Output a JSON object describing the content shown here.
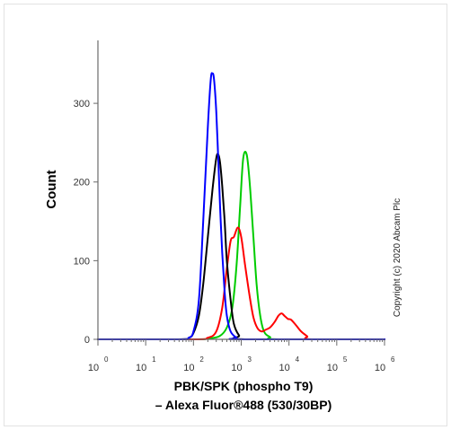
{
  "chart_data": {
    "type": "line",
    "ylabel": "Count",
    "xlabel_line1": "PBK/SPK (phospho T9)",
    "xlabel_line2": "– Alexa Fluor®488 (530/30BP)",
    "x_scale": "log",
    "xlim": [
      1,
      1000000
    ],
    "ylim": [
      0,
      380
    ],
    "grid": false,
    "y_ticks": [
      {
        "value": 0,
        "label": "0"
      },
      {
        "value": 100,
        "label": "100"
      },
      {
        "value": 200,
        "label": "200"
      },
      {
        "value": 300,
        "label": "300"
      }
    ],
    "x_ticks": [
      {
        "value": 1,
        "base": "10",
        "exp": "0"
      },
      {
        "value": 10,
        "base": "10",
        "exp": "1"
      },
      {
        "value": 100,
        "base": "10",
        "exp": "2"
      },
      {
        "value": 1000,
        "base": "10",
        "exp": "3"
      },
      {
        "value": 10000,
        "base": "10",
        "exp": "4"
      },
      {
        "value": 100000,
        "base": "10",
        "exp": "5"
      },
      {
        "value": 1000000,
        "base": "10",
        "exp": "6"
      }
    ],
    "series": [
      {
        "color": "#00cc00",
        "x": [
          1,
          100,
          200,
          350,
          500,
          650,
          800,
          950,
          1100,
          1300,
          1500,
          1800,
          2100,
          2500,
          3000,
          4000,
          6000,
          1000000
        ],
        "y": [
          0,
          0,
          1,
          4,
          15,
          40,
          95,
          170,
          230,
          235,
          200,
          130,
          70,
          30,
          10,
          3,
          0,
          0
        ]
      },
      {
        "color": "#ff0000",
        "x": [
          1,
          100,
          200,
          300,
          400,
          500,
          600,
          700,
          850,
          1000,
          1200,
          1500,
          1800,
          2200,
          2700,
          3200,
          4000,
          5000,
          6000,
          7000,
          8000,
          9500,
          11000,
          14000,
          18000,
          24000,
          30000,
          1000000
        ],
        "y": [
          0,
          0,
          2,
          10,
          40,
          90,
          125,
          130,
          142,
          130,
          95,
          55,
          28,
          14,
          10,
          12,
          15,
          22,
          30,
          33,
          30,
          26,
          25,
          18,
          10,
          4,
          0,
          0
        ]
      },
      {
        "color": "#000000",
        "x": [
          1,
          50,
          80,
          100,
          130,
          160,
          200,
          250,
          300,
          330,
          360,
          400,
          450,
          500,
          600,
          700,
          900,
          1200,
          1000000
        ],
        "y": [
          0,
          0,
          2,
          8,
          30,
          70,
          130,
          190,
          230,
          235,
          225,
          195,
          150,
          100,
          50,
          20,
          5,
          0,
          0
        ]
      },
      {
        "color": "#0000ff",
        "x": [
          1,
          50,
          80,
          100,
          130,
          160,
          200,
          230,
          250,
          270,
          300,
          330,
          360,
          400,
          450,
          500,
          600,
          800,
          1000,
          1000000
        ],
        "y": [
          0,
          0,
          2,
          10,
          50,
          150,
          270,
          330,
          338,
          330,
          290,
          230,
          170,
          110,
          60,
          30,
          10,
          2,
          0,
          0
        ]
      }
    ]
  },
  "copyright": "Copyright (c) 2020 Abcam Plc"
}
